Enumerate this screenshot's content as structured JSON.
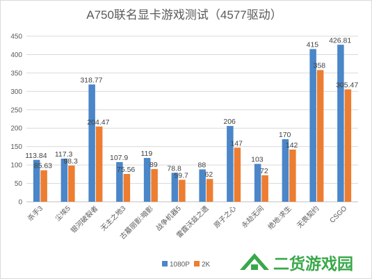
{
  "chart_data": {
    "type": "bar",
    "title": "A750联名显卡游戏测试（4577驱动）",
    "categories": [
      "杀手3",
      "尘埃5",
      "银河破裂者",
      "无主之地3",
      "古墓丽影:暗影",
      "战争机器5",
      "雷霆沃兹之遗",
      "原子之心",
      "永劫无间",
      "绝地:求生",
      "无畏契约",
      "CSGO"
    ],
    "series": [
      {
        "name": "1080P",
        "values": [
          113.84,
          117.3,
          318.77,
          107.9,
          119,
          78.8,
          88,
          206,
          103,
          170,
          415,
          426.81
        ],
        "labels": [
          "113.84",
          "117.3",
          "318.77",
          "107.9",
          "119",
          "78.8",
          "88",
          "206",
          "103",
          "170",
          "415",
          "426.81"
        ],
        "color": "#4a86c8"
      },
      {
        "name": "2K",
        "values": [
          85.63,
          98.3,
          204.47,
          75.56,
          89,
          59.7,
          62,
          147,
          72,
          142,
          358,
          305.47
        ],
        "labels": [
          "85.63",
          "98.3",
          "204.47",
          "75.56",
          "89",
          "59.7",
          "62",
          "147",
          "72",
          "142",
          "358",
          "305.47"
        ],
        "color": "#ed7d31"
      }
    ],
    "ylim": [
      0,
      450
    ],
    "yticks": [
      "0",
      "50",
      "100",
      "150",
      "200",
      "250",
      "300",
      "350",
      "400",
      "450"
    ],
    "grid": true,
    "legend": "bottom"
  },
  "watermark": {
    "text": "二货游戏园",
    "color": "#39a84a"
  },
  "colors": {
    "grid": "#d9d9d9",
    "axis": "#bfbfbf"
  }
}
